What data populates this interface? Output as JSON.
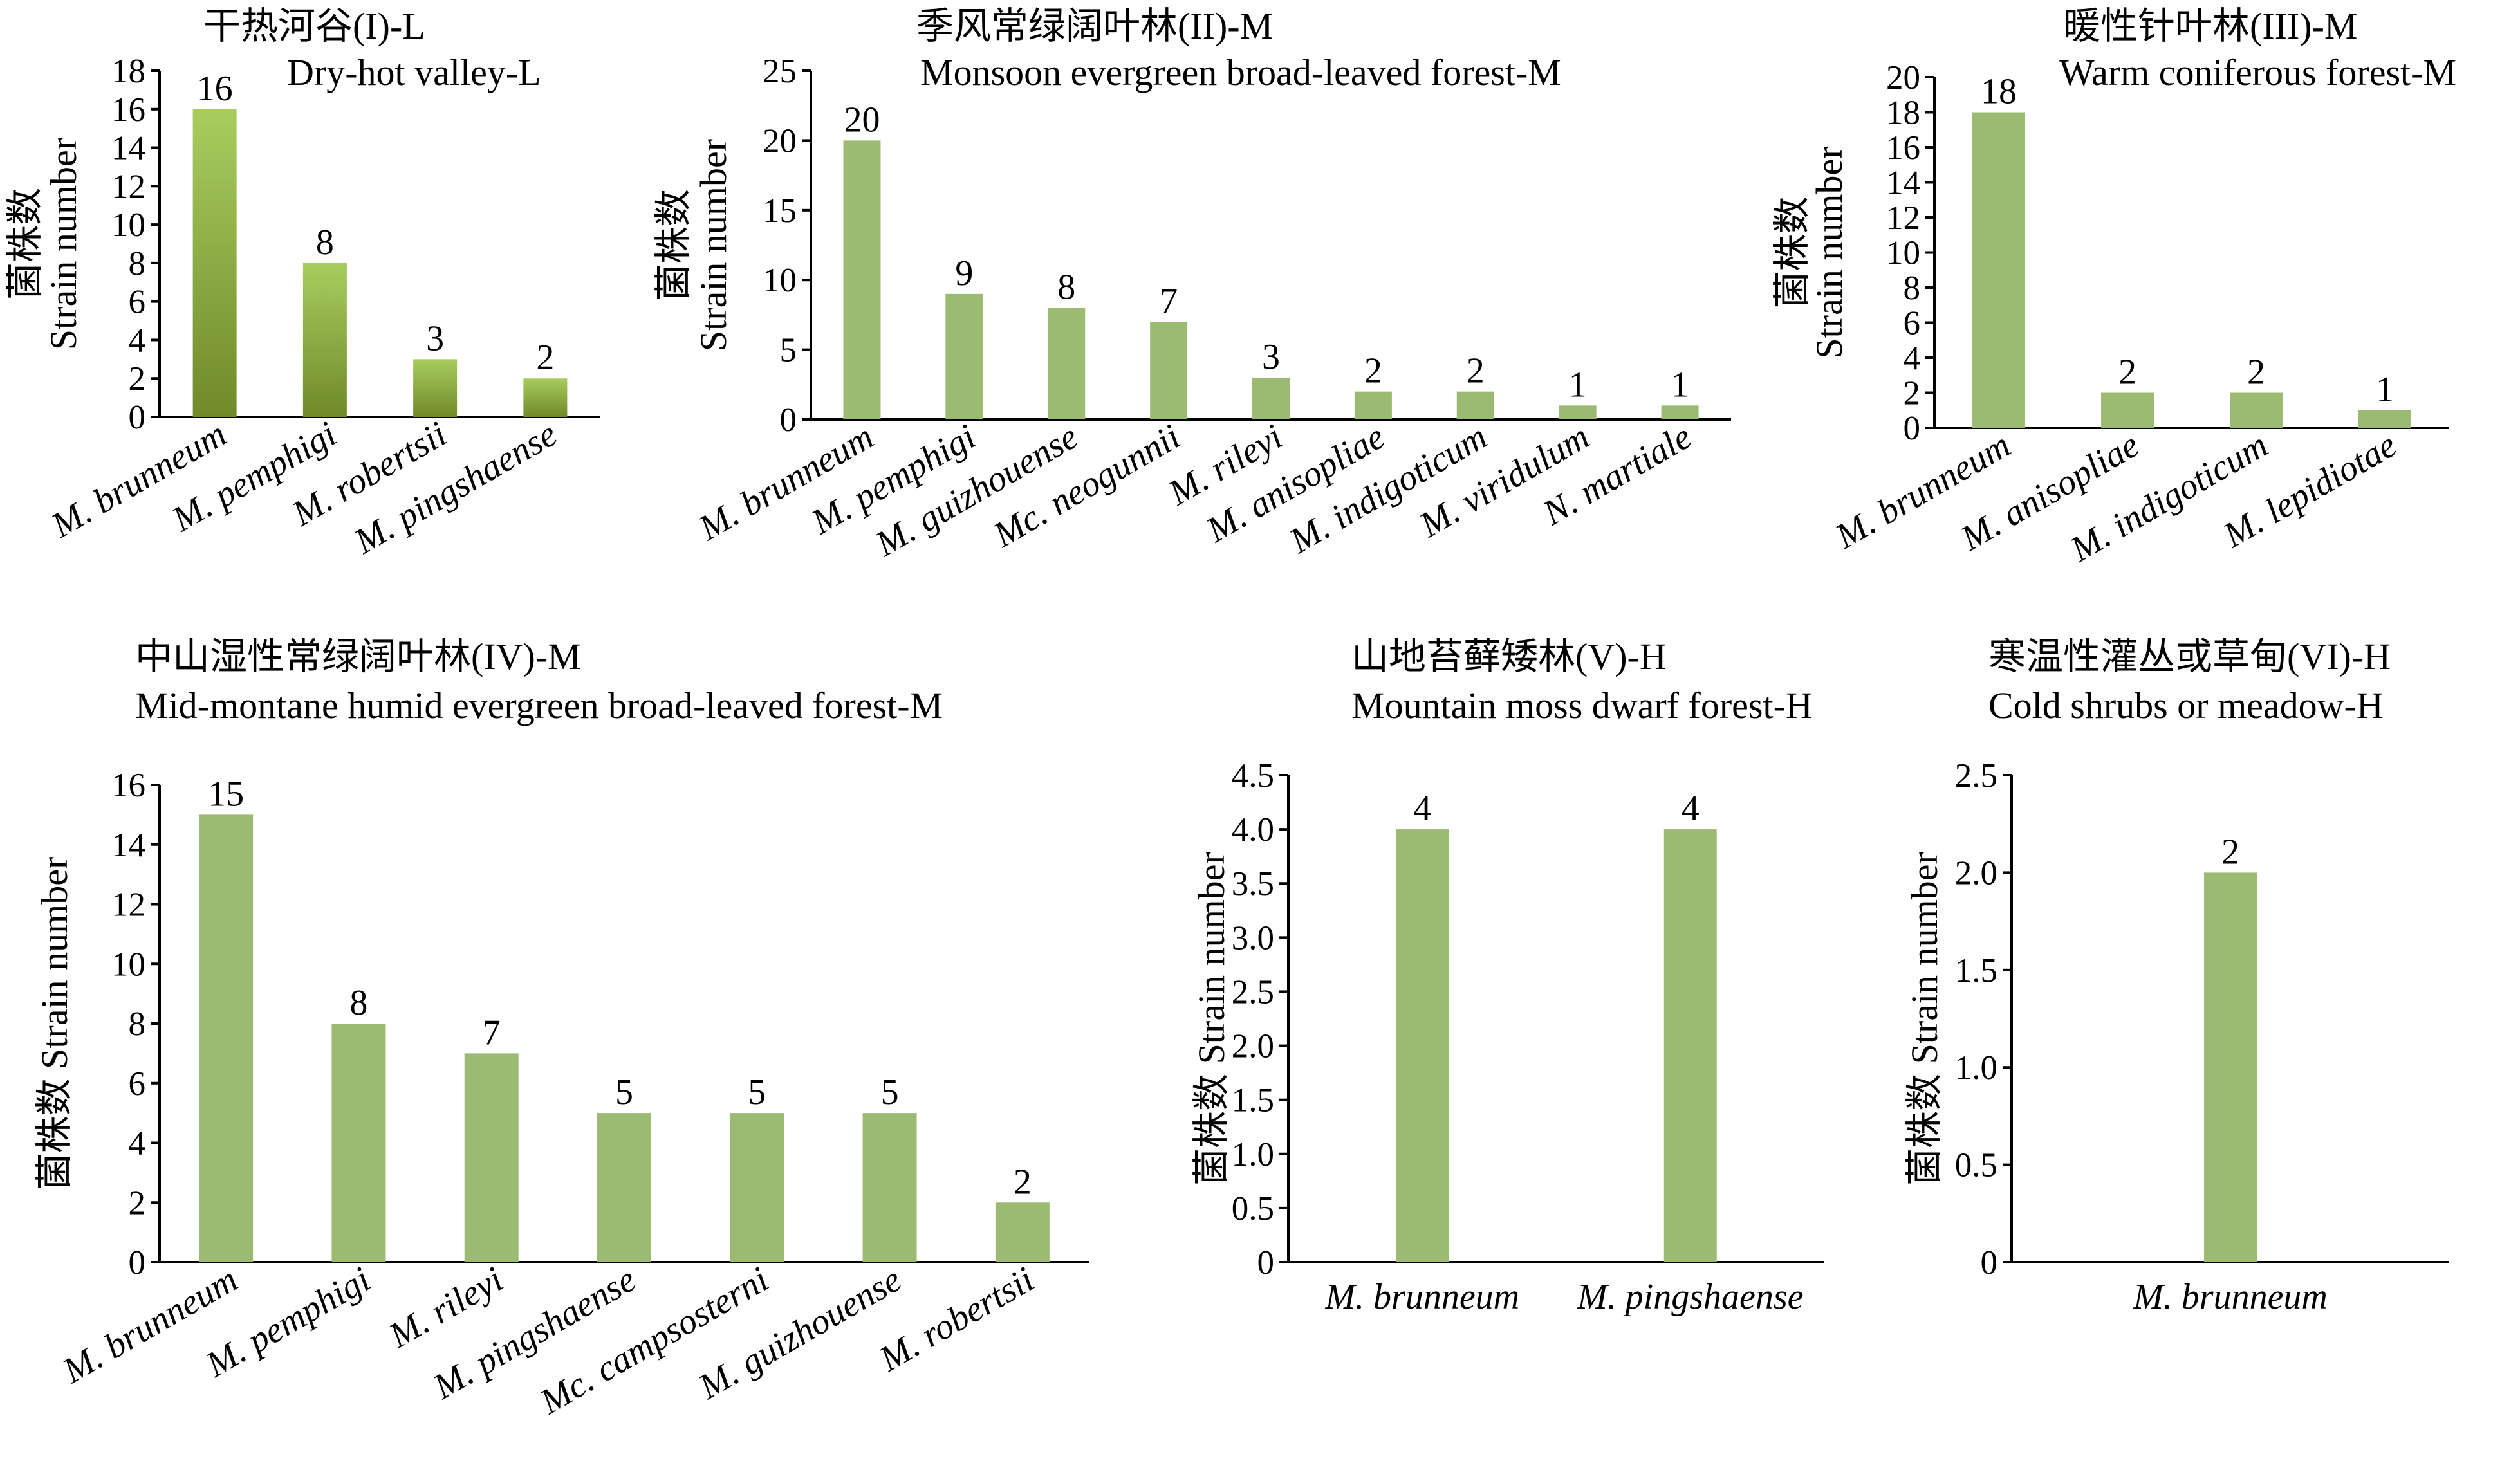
{
  "chart_data": [
    {
      "type": "bar",
      "title_zh": "干热河谷(I)-L",
      "title_en": "Dry-hot valley-L",
      "ylabel": "菌株数|Strain number",
      "categories": [
        "M. brunneum",
        "M. pemphigi",
        "M. robertsii",
        "M. pingshaense"
      ],
      "values": [
        16,
        8,
        3,
        2
      ],
      "ylim": [
        0,
        18
      ],
      "yticks": [
        "0",
        "2",
        "4",
        "6",
        "8",
        "10",
        "12",
        "14",
        "16",
        "18"
      ],
      "bar_color": "#88aa44",
      "gradient": true
    },
    {
      "type": "bar",
      "title_zh": "季风常绿阔叶林(II)-M",
      "title_en": "Monsoon evergreen broad-leaved forest-M",
      "ylabel": "菌株数|Strain number",
      "categories": [
        "M. brunneum",
        "M. pemphigi",
        "M. guizhouense",
        "Mc. neogunnii",
        "M. rileyi",
        "M. anisopliae",
        "M. indigoticum",
        "M. viridulum",
        "N. martiale"
      ],
      "values": [
        20,
        9,
        8,
        7,
        3,
        2,
        2,
        1,
        1
      ],
      "ylim": [
        0,
        25
      ],
      "yticks": [
        "0",
        "5",
        "10",
        "15",
        "20",
        "25"
      ],
      "bar_color": "#9bbb72"
    },
    {
      "type": "bar",
      "title_zh": "暖性针叶林(III)-M",
      "title_en": "Warm coniferous forest-M",
      "ylabel": "菌株数|Strain number",
      "categories": [
        "M. brunneum",
        "M. anisopliae",
        "M. indigoticum",
        "M. lepidiotae"
      ],
      "values": [
        18,
        2,
        2,
        1
      ],
      "ylim": [
        0,
        20
      ],
      "yticks": [
        "0",
        "2",
        "4",
        "6",
        "8",
        "10",
        "12",
        "14",
        "16",
        "18",
        "20"
      ],
      "bar_color": "#9bbb72"
    },
    {
      "type": "bar",
      "title_zh": "中山湿性常绿阔叶林(IV)-M",
      "title_en": "Mid-montane humid evergreen broad-leaved forest-M",
      "ylabel": "菌株数 Strain number",
      "categories": [
        "M. brunneum",
        "M. pemphigi",
        "M. rileyi",
        "M. pingshaense",
        "Mc. campsosterni",
        "M. guizhouense",
        "M. robertsii"
      ],
      "values": [
        15,
        8,
        7,
        5,
        5,
        5,
        2
      ],
      "ylim": [
        0,
        16
      ],
      "yticks": [
        "0",
        "2",
        "4",
        "6",
        "8",
        "10",
        "12",
        "14",
        "16"
      ],
      "bar_color": "#9bbb72"
    },
    {
      "type": "bar",
      "title_zh": "山地苔藓矮林(V)-H",
      "title_en": "Mountain moss dwarf forest-H",
      "ylabel": "菌株数 Strain number",
      "categories": [
        "M. brunneum",
        "M. pingshaense"
      ],
      "values": [
        4,
        4
      ],
      "ylim": [
        0,
        4.5
      ],
      "yticks": [
        "0",
        "0.5",
        "1.0",
        "1.5",
        "2.0",
        "2.5",
        "3.0",
        "3.5",
        "4.0",
        "4.5"
      ],
      "bar_color": "#9bbb72"
    },
    {
      "type": "bar",
      "title_zh": "寒温性灌丛或草甸(VI)-H",
      "title_en": "Cold shrubs or meadow-H",
      "ylabel": "菌株数 Strain number",
      "categories": [
        "M. brunneum"
      ],
      "values": [
        2
      ],
      "ylim": [
        0,
        2.5
      ],
      "yticks": [
        "0",
        "0.5",
        "1.0",
        "1.5",
        "2.0",
        "2.5"
      ],
      "bar_color": "#9bbb72"
    }
  ]
}
